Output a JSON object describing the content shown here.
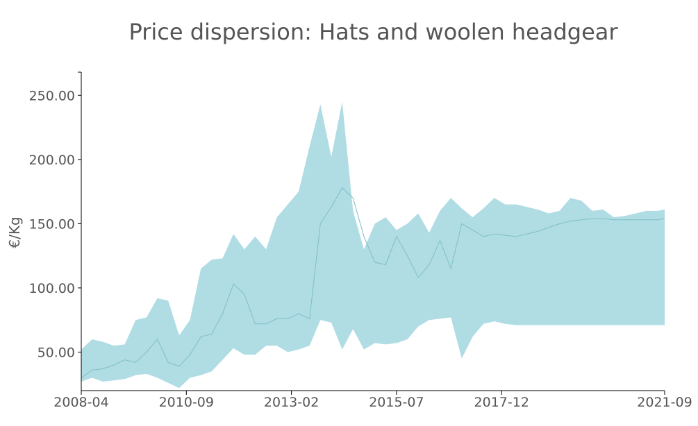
{
  "chart_data": {
    "type": "area",
    "title": "Price dispersion: Hats and woolen headgear",
    "xlabel": "",
    "ylabel": "€/Kg",
    "x_tick_labels": [
      "2008-04",
      "2010-09",
      "2013-02",
      "2015-07",
      "2017-12",
      "2021-09"
    ],
    "y_tick_labels": [
      "50.00",
      "100.00",
      "150.00",
      "200.00",
      "250.00"
    ],
    "y_tick_values": [
      50,
      100,
      150,
      200,
      250
    ],
    "xlim": [
      "2008-04",
      "2021-09"
    ],
    "ylim": [
      20,
      268
    ],
    "grid": false,
    "legend": "none",
    "colors": {
      "band": "#b0dce4",
      "line": "#7fbfc8",
      "axis": "#000000",
      "text": "#555555"
    },
    "x": [
      "2008-04",
      "2008-07",
      "2008-10",
      "2009-01",
      "2009-04",
      "2009-07",
      "2009-10",
      "2010-01",
      "2010-04",
      "2010-07",
      "2010-10",
      "2011-01",
      "2011-04",
      "2011-07",
      "2011-10",
      "2012-01",
      "2012-04",
      "2012-07",
      "2012-10",
      "2013-01",
      "2013-04",
      "2013-07",
      "2013-10",
      "2014-01",
      "2014-04",
      "2014-07",
      "2014-10",
      "2015-01",
      "2015-04",
      "2015-07",
      "2015-10",
      "2016-01",
      "2016-04",
      "2016-07",
      "2016-10",
      "2017-01",
      "2017-04",
      "2017-07",
      "2017-10",
      "2018-01",
      "2018-04",
      "2018-07",
      "2018-10",
      "2019-01",
      "2019-04",
      "2019-07",
      "2019-10",
      "2020-01",
      "2020-04",
      "2020-07",
      "2020-10",
      "2021-01",
      "2021-04",
      "2021-07",
      "2021-09"
    ],
    "series": [
      {
        "role": "upper",
        "values": [
          52,
          60,
          58,
          55,
          56,
          75,
          77,
          92,
          90,
          63,
          75,
          115,
          122,
          123,
          142,
          130,
          140,
          130,
          155,
          165,
          175,
          210,
          243,
          202,
          245,
          160,
          130,
          150,
          155,
          145,
          150,
          158,
          143,
          160,
          170,
          162,
          155,
          162,
          170,
          165,
          165,
          163,
          161,
          158,
          160,
          170,
          168,
          160,
          161,
          155,
          156,
          158,
          160,
          160,
          161
        ]
      },
      {
        "role": "median",
        "values": [
          30,
          36,
          37,
          40,
          44,
          42,
          50,
          60,
          42,
          39,
          48,
          62,
          64,
          80,
          103,
          95,
          72,
          72,
          76,
          76,
          80,
          76,
          150,
          163,
          178,
          170,
          140,
          120,
          118,
          140,
          125,
          108,
          118,
          137,
          115,
          150,
          145,
          140,
          142,
          141,
          140,
          142,
          144,
          147,
          150,
          152,
          153,
          154,
          154,
          153,
          153,
          153,
          153,
          153,
          154
        ]
      },
      {
        "role": "lower",
        "values": [
          27,
          30,
          27,
          28,
          29,
          32,
          33,
          30,
          26,
          22,
          30,
          32,
          35,
          44,
          53,
          48,
          48,
          55,
          55,
          50,
          52,
          55,
          75,
          73,
          52,
          68,
          52,
          57,
          56,
          57,
          60,
          70,
          75,
          76,
          77,
          45,
          62,
          72,
          74,
          72,
          71,
          71,
          71,
          71,
          71,
          71,
          71,
          71,
          71,
          71,
          71,
          71,
          71,
          71,
          71
        ]
      }
    ]
  }
}
